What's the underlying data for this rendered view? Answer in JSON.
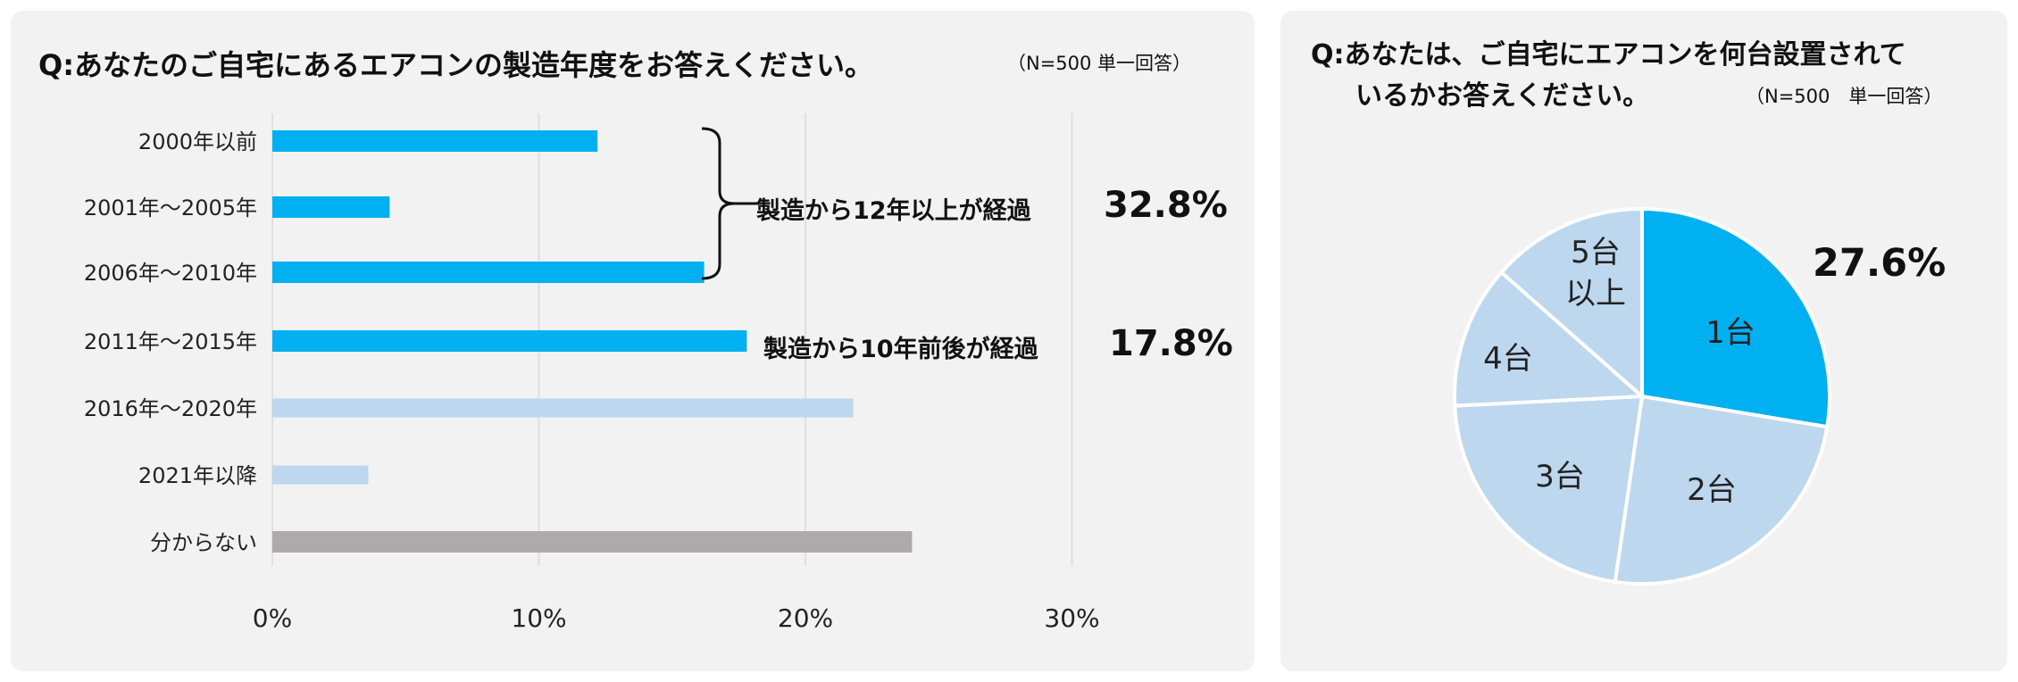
{
  "chart_data": [
    {
      "type": "bar",
      "orientation": "horizontal",
      "title": "Q:あなたのご自宅にあるエアコンの製造年度をお答えください。",
      "subtitle": "（N=500 単一回答）",
      "categories": [
        "2000年以前",
        "2001年～2005年",
        "2006年～2010年",
        "2011年～2015年",
        "2016年～2020年",
        "2021年以降",
        "分からない"
      ],
      "values": [
        12.2,
        4.4,
        16.2,
        17.8,
        21.8,
        3.6,
        24.0
      ],
      "bar_colors": [
        "#00b0f0",
        "#00b0f0",
        "#00b0f0",
        "#00b0f0",
        "#bdd7ee",
        "#bdd7ee",
        "#aeaaaa"
      ],
      "xlim": [
        0,
        30
      ],
      "xticks": [
        "0%",
        "10%",
        "20%",
        "30%"
      ],
      "grid": true,
      "annotations": [
        {
          "text": "製造から12年以上が経過",
          "value": "32.8%",
          "categories": [
            "2000年以前",
            "2001年～2005年",
            "2006年～2010年"
          ]
        },
        {
          "text": "製造から10年前後が経過",
          "value": "17.8%",
          "categories": [
            "2011年～2015年"
          ]
        }
      ]
    },
    {
      "type": "pie",
      "title_line1": "Q:あなたは、ご自宅にエアコンを何台設置されて",
      "title_line2": "いるかお答えください。",
      "subtitle": "（N=500　単一回答）",
      "slices": [
        {
          "label": "1台",
          "value": 27.6,
          "color": "#00b0f0"
        },
        {
          "label": "2台",
          "value": 24.7,
          "color": "#bdd7ee"
        },
        {
          "label": "3台",
          "value": 21.9,
          "color": "#bdd7ee"
        },
        {
          "label": "4台",
          "value": 12.3,
          "color": "#bdd7ee"
        },
        {
          "label": "5台以上",
          "label_lines": [
            "5台",
            "以上"
          ],
          "value": 13.5,
          "color": "#bdd7ee"
        }
      ],
      "highlight_label": "27.6%"
    }
  ]
}
